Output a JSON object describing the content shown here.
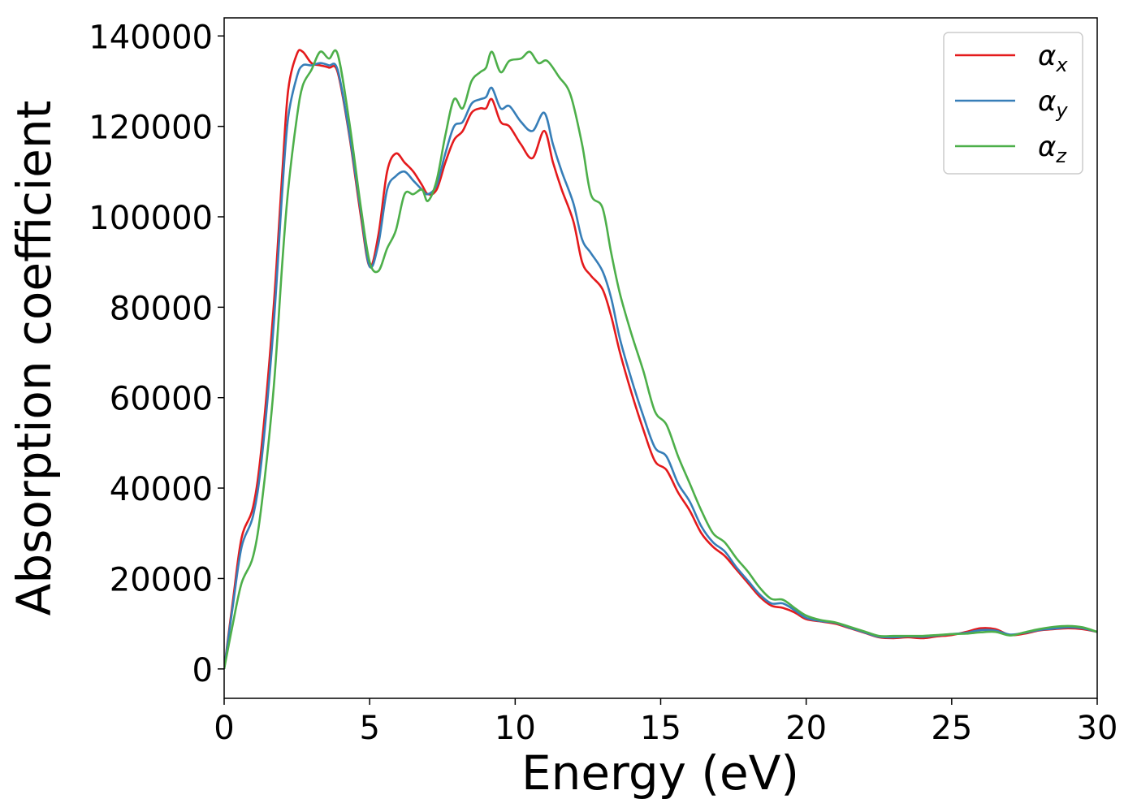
{
  "chart_data": {
    "type": "line",
    "xlabel": "Energy (eV)",
    "ylabel": "Absorption coefficient",
    "xlim": [
      0,
      30
    ],
    "ylim": [
      -6500,
      144000
    ],
    "xticks": [
      0,
      5,
      10,
      15,
      20,
      25,
      30
    ],
    "xtick_labels": [
      "0",
      "5",
      "10",
      "15",
      "20",
      "25",
      "30"
    ],
    "yticks": [
      0,
      20000,
      40000,
      60000,
      80000,
      100000,
      120000,
      140000
    ],
    "ytick_labels": [
      "0",
      "20000",
      "40000",
      "60000",
      "80000",
      "100000",
      "120000",
      "140000"
    ],
    "grid": false,
    "legend_position": "top-right",
    "series": [
      {
        "name": "α",
        "subscript": "x",
        "color": "#e41a1c",
        "points": [
          [
            0,
            0
          ],
          [
            0.3,
            15000
          ],
          [
            0.6,
            29000
          ],
          [
            1.0,
            36000
          ],
          [
            1.3,
            50000
          ],
          [
            1.7,
            80000
          ],
          [
            2.0,
            110000
          ],
          [
            2.2,
            128000
          ],
          [
            2.5,
            136000
          ],
          [
            2.7,
            136500
          ],
          [
            3.0,
            134000
          ],
          [
            3.3,
            133500
          ],
          [
            3.6,
            133000
          ],
          [
            3.9,
            132000
          ],
          [
            4.3,
            118000
          ],
          [
            4.7,
            100000
          ],
          [
            5.0,
            89000
          ],
          [
            5.3,
            96000
          ],
          [
            5.6,
            110000
          ],
          [
            5.9,
            114000
          ],
          [
            6.2,
            112000
          ],
          [
            6.5,
            110000
          ],
          [
            6.8,
            107000
          ],
          [
            7.0,
            105000
          ],
          [
            7.3,
            106000
          ],
          [
            7.6,
            112000
          ],
          [
            7.9,
            117000
          ],
          [
            8.2,
            119000
          ],
          [
            8.5,
            123000
          ],
          [
            8.8,
            124000
          ],
          [
            9.0,
            124000
          ],
          [
            9.2,
            126000
          ],
          [
            9.5,
            121000
          ],
          [
            9.8,
            120000
          ],
          [
            10.2,
            116000
          ],
          [
            10.6,
            113000
          ],
          [
            11.0,
            119000
          ],
          [
            11.3,
            112000
          ],
          [
            11.6,
            106000
          ],
          [
            12.0,
            99000
          ],
          [
            12.3,
            90000
          ],
          [
            12.6,
            87000
          ],
          [
            13.0,
            84000
          ],
          [
            13.3,
            78000
          ],
          [
            13.6,
            70000
          ],
          [
            14.0,
            61000
          ],
          [
            14.4,
            53000
          ],
          [
            14.8,
            46000
          ],
          [
            15.2,
            44000
          ],
          [
            15.6,
            39000
          ],
          [
            16.0,
            35000
          ],
          [
            16.4,
            30000
          ],
          [
            16.8,
            27000
          ],
          [
            17.2,
            25000
          ],
          [
            17.6,
            22000
          ],
          [
            18.0,
            19000
          ],
          [
            18.4,
            16000
          ],
          [
            18.8,
            14000
          ],
          [
            19.2,
            13500
          ],
          [
            19.6,
            12500
          ],
          [
            20.0,
            11000
          ],
          [
            20.5,
            10500
          ],
          [
            21.0,
            10000
          ],
          [
            21.5,
            9000
          ],
          [
            22.0,
            8000
          ],
          [
            22.5,
            7000
          ],
          [
            23.0,
            6800
          ],
          [
            23.5,
            7000
          ],
          [
            24.0,
            6800
          ],
          [
            24.5,
            7200
          ],
          [
            25.0,
            7500
          ],
          [
            25.5,
            8200
          ],
          [
            26.0,
            9000
          ],
          [
            26.5,
            8800
          ],
          [
            27.0,
            7500
          ],
          [
            27.5,
            7800
          ],
          [
            28.0,
            8500
          ],
          [
            28.5,
            8800
          ],
          [
            29.0,
            9000
          ],
          [
            29.5,
            8800
          ],
          [
            30.0,
            8200
          ]
        ]
      },
      {
        "name": "α",
        "subscript": "y",
        "color": "#377eb8",
        "points": [
          [
            0,
            0
          ],
          [
            0.3,
            14000
          ],
          [
            0.6,
            27000
          ],
          [
            1.0,
            34000
          ],
          [
            1.3,
            47000
          ],
          [
            1.7,
            76000
          ],
          [
            2.0,
            106000
          ],
          [
            2.2,
            122000
          ],
          [
            2.5,
            131000
          ],
          [
            2.7,
            133500
          ],
          [
            3.0,
            133500
          ],
          [
            3.3,
            134000
          ],
          [
            3.6,
            133500
          ],
          [
            3.9,
            132500
          ],
          [
            4.3,
            118500
          ],
          [
            4.7,
            101000
          ],
          [
            5.0,
            89000
          ],
          [
            5.3,
            94000
          ],
          [
            5.6,
            106000
          ],
          [
            5.9,
            109000
          ],
          [
            6.2,
            110000
          ],
          [
            6.5,
            108000
          ],
          [
            6.8,
            106000
          ],
          [
            7.0,
            105000
          ],
          [
            7.3,
            107000
          ],
          [
            7.6,
            114000
          ],
          [
            7.9,
            120000
          ],
          [
            8.2,
            121000
          ],
          [
            8.5,
            125000
          ],
          [
            8.8,
            126000
          ],
          [
            9.0,
            126500
          ],
          [
            9.2,
            128500
          ],
          [
            9.5,
            124000
          ],
          [
            9.8,
            124500
          ],
          [
            10.2,
            121000
          ],
          [
            10.6,
            119000
          ],
          [
            11.0,
            123000
          ],
          [
            11.3,
            116000
          ],
          [
            11.6,
            110000
          ],
          [
            12.0,
            103000
          ],
          [
            12.3,
            95000
          ],
          [
            12.6,
            92000
          ],
          [
            13.0,
            88000
          ],
          [
            13.3,
            82000
          ],
          [
            13.6,
            73000
          ],
          [
            14.0,
            64000
          ],
          [
            14.4,
            56000
          ],
          [
            14.8,
            49000
          ],
          [
            15.2,
            47000
          ],
          [
            15.6,
            41000
          ],
          [
            16.0,
            37000
          ],
          [
            16.4,
            31500
          ],
          [
            16.8,
            28000
          ],
          [
            17.2,
            26000
          ],
          [
            17.6,
            22500
          ],
          [
            18.0,
            19500
          ],
          [
            18.4,
            16500
          ],
          [
            18.8,
            14500
          ],
          [
            19.2,
            14500
          ],
          [
            19.6,
            13000
          ],
          [
            20.0,
            11300
          ],
          [
            20.5,
            10600
          ],
          [
            21.0,
            10200
          ],
          [
            21.5,
            9100
          ],
          [
            22.0,
            8100
          ],
          [
            22.5,
            7100
          ],
          [
            23.0,
            7000
          ],
          [
            23.5,
            7200
          ],
          [
            24.0,
            7100
          ],
          [
            24.5,
            7400
          ],
          [
            25.0,
            7700
          ],
          [
            25.5,
            8000
          ],
          [
            26.0,
            8600
          ],
          [
            26.5,
            8500
          ],
          [
            27.0,
            7600
          ],
          [
            27.5,
            8000
          ],
          [
            28.0,
            8600
          ],
          [
            28.5,
            8900
          ],
          [
            29.0,
            9200
          ],
          [
            29.5,
            9000
          ],
          [
            30.0,
            8200
          ]
        ]
      },
      {
        "name": "α",
        "subscript": "z",
        "color": "#4daf4a",
        "points": [
          [
            0,
            0
          ],
          [
            0.3,
            10000
          ],
          [
            0.6,
            19000
          ],
          [
            1.0,
            25000
          ],
          [
            1.3,
            37000
          ],
          [
            1.7,
            62000
          ],
          [
            2.0,
            90000
          ],
          [
            2.2,
            106000
          ],
          [
            2.5,
            122000
          ],
          [
            2.7,
            129000
          ],
          [
            3.0,
            132500
          ],
          [
            3.3,
            136500
          ],
          [
            3.6,
            135000
          ],
          [
            3.9,
            136000
          ],
          [
            4.3,
            121000
          ],
          [
            4.7,
            102000
          ],
          [
            5.0,
            90000
          ],
          [
            5.3,
            88000
          ],
          [
            5.6,
            93000
          ],
          [
            5.9,
            97000
          ],
          [
            6.2,
            105000
          ],
          [
            6.5,
            105000
          ],
          [
            6.8,
            106000
          ],
          [
            7.0,
            103500
          ],
          [
            7.3,
            108000
          ],
          [
            7.6,
            118000
          ],
          [
            7.9,
            126000
          ],
          [
            8.2,
            124000
          ],
          [
            8.5,
            130000
          ],
          [
            8.8,
            132000
          ],
          [
            9.0,
            133000
          ],
          [
            9.2,
            136500
          ],
          [
            9.5,
            132000
          ],
          [
            9.8,
            134500
          ],
          [
            10.2,
            135000
          ],
          [
            10.5,
            136500
          ],
          [
            10.8,
            134000
          ],
          [
            11.1,
            134500
          ],
          [
            11.5,
            131000
          ],
          [
            11.9,
            127000
          ],
          [
            12.3,
            116000
          ],
          [
            12.6,
            105000
          ],
          [
            13.0,
            102000
          ],
          [
            13.3,
            92000
          ],
          [
            13.6,
            83000
          ],
          [
            14.0,
            74000
          ],
          [
            14.4,
            66000
          ],
          [
            14.8,
            57000
          ],
          [
            15.2,
            54000
          ],
          [
            15.6,
            47000
          ],
          [
            16.0,
            41000
          ],
          [
            16.4,
            35000
          ],
          [
            16.8,
            30000
          ],
          [
            17.2,
            28000
          ],
          [
            17.6,
            24500
          ],
          [
            18.0,
            21500
          ],
          [
            18.4,
            18000
          ],
          [
            18.8,
            15500
          ],
          [
            19.2,
            15300
          ],
          [
            19.6,
            13500
          ],
          [
            20.0,
            11800
          ],
          [
            20.5,
            10800
          ],
          [
            21.0,
            10300
          ],
          [
            21.5,
            9300
          ],
          [
            22.0,
            8300
          ],
          [
            22.5,
            7300
          ],
          [
            23.0,
            7300
          ],
          [
            23.5,
            7300
          ],
          [
            24.0,
            7300
          ],
          [
            24.5,
            7500
          ],
          [
            25.0,
            7700
          ],
          [
            25.5,
            7800
          ],
          [
            26.0,
            8100
          ],
          [
            26.5,
            8200
          ],
          [
            27.0,
            7400
          ],
          [
            27.5,
            8100
          ],
          [
            28.0,
            8800
          ],
          [
            28.5,
            9300
          ],
          [
            29.0,
            9500
          ],
          [
            29.5,
            9200
          ],
          [
            30.0,
            8200
          ]
        ]
      }
    ]
  }
}
